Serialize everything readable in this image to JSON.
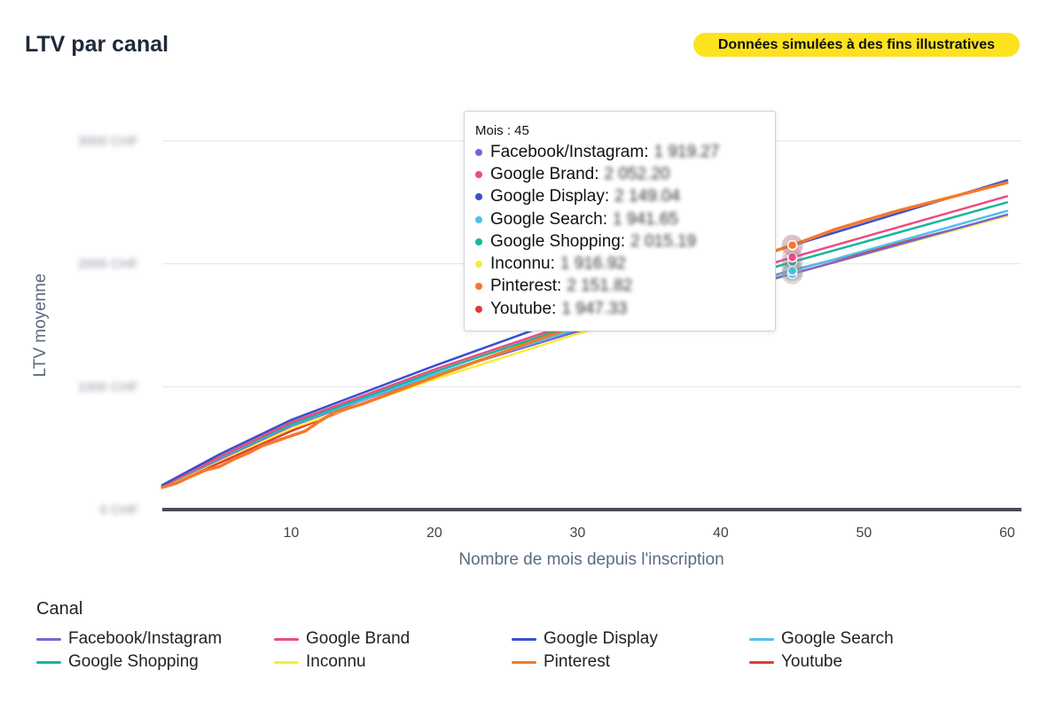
{
  "page": {
    "title": "LTV par canal",
    "badge": "Données simulées à des fins illustratives"
  },
  "tooltip": {
    "header": "Mois : 45",
    "rows": [
      {
        "label": "Facebook/Instagram:",
        "value": "1 919.27",
        "color": "#7c62d6"
      },
      {
        "label": "Google Brand:",
        "value": "2 052.20",
        "color": "#ee4b80"
      },
      {
        "label": "Google Display:",
        "value": "2 149.04",
        "color": "#3a4fcf"
      },
      {
        "label": "Google Search:",
        "value": "1 941.65",
        "color": "#4fc1ec"
      },
      {
        "label": "Google Shopping:",
        "value": "2 015.19",
        "color": "#14b89a"
      },
      {
        "label": "Inconnu:",
        "value": "1 916.92",
        "color": "#f4ef38"
      },
      {
        "label": "Pinterest:",
        "value": "2 151.82",
        "color": "#f5782a"
      },
      {
        "label": "Youtube:",
        "value": "1 947.33",
        "color": "#e23a3a"
      }
    ]
  },
  "legend": {
    "title": "Canal",
    "items": [
      {
        "label": "Facebook/Instagram",
        "color": "#7c62d6"
      },
      {
        "label": "Google Brand",
        "color": "#ee4b80"
      },
      {
        "label": "Google Display",
        "color": "#3a4fcf"
      },
      {
        "label": "Google Search",
        "color": "#4fc1ec"
      },
      {
        "label": "Google Shopping",
        "color": "#14b89a"
      },
      {
        "label": "Inconnu",
        "color": "#f4ef38"
      },
      {
        "label": "Pinterest",
        "color": "#f5782a"
      },
      {
        "label": "Youtube",
        "color": "#e23a3a"
      }
    ]
  },
  "chart_data": {
    "type": "line",
    "title": "LTV par canal",
    "xlabel": "Nombre de mois depuis l'inscription",
    "ylabel": "LTV moyenne",
    "xlim": [
      1,
      61
    ],
    "ylim": [
      0,
      3000
    ],
    "xticks": [
      10,
      20,
      30,
      40,
      50,
      60
    ],
    "yticks": [
      {
        "value": 0,
        "label": "0 CHF"
      },
      {
        "value": 1000,
        "label": "1000 CHF"
      },
      {
        "value": 2000,
        "label": "2000 CHF"
      },
      {
        "value": 3000,
        "label": "3000 CHF"
      }
    ],
    "grid": true,
    "legend_position": "bottom",
    "hover_x": 45,
    "series": [
      {
        "name": "Facebook/Instagram",
        "color": "#7c62d6",
        "x": [
          1,
          5,
          10,
          20,
          30,
          45,
          60
        ],
        "y": [
          190,
          410,
          680,
          1100,
          1450,
          1919.27,
          2400
        ]
      },
      {
        "name": "Google Brand",
        "color": "#ee4b80",
        "x": [
          1,
          5,
          10,
          20,
          30,
          45,
          60
        ],
        "y": [
          190,
          430,
          710,
          1140,
          1530,
          2052.2,
          2550
        ]
      },
      {
        "name": "Google Display",
        "color": "#3a4fcf",
        "x": [
          1,
          5,
          10,
          20,
          30,
          45,
          60
        ],
        "y": [
          200,
          450,
          730,
          1170,
          1590,
          2149.04,
          2680
        ]
      },
      {
        "name": "Google Search",
        "color": "#4fc1ec",
        "x": [
          1,
          5,
          10,
          20,
          30,
          45,
          60
        ],
        "y": [
          190,
          420,
          690,
          1100,
          1470,
          1941.65,
          2430
        ]
      },
      {
        "name": "Google Shopping",
        "color": "#14b89a",
        "x": [
          1,
          5,
          10,
          20,
          30,
          45,
          60
        ],
        "y": [
          190,
          425,
          695,
          1120,
          1510,
          2015.19,
          2500
        ]
      },
      {
        "name": "Inconnu",
        "color": "#f4ef38",
        "x": [
          1,
          5,
          10,
          20,
          30,
          45,
          60
        ],
        "y": [
          185,
          400,
          660,
          1060,
          1430,
          1916.92,
          2390
        ]
      },
      {
        "name": "Pinterest",
        "color": "#f5782a",
        "x": [
          1,
          2,
          3,
          4,
          5,
          6,
          7,
          8,
          9,
          10,
          11,
          12,
          13,
          15,
          20,
          30,
          40,
          45,
          48,
          50,
          52,
          55,
          60
        ],
        "y": [
          180,
          215,
          270,
          320,
          350,
          410,
          460,
          520,
          560,
          600,
          640,
          720,
          790,
          860,
          1080,
          1500,
          1960,
          2151.82,
          2280,
          2350,
          2420,
          2510,
          2660
        ]
      },
      {
        "name": "Youtube",
        "color": "#e23a3a",
        "x": [
          1,
          5,
          10,
          20,
          30,
          45,
          60
        ],
        "y": [
          185,
          380,
          640,
          1090,
          1470,
          1947.33,
          2390
        ]
      }
    ]
  }
}
